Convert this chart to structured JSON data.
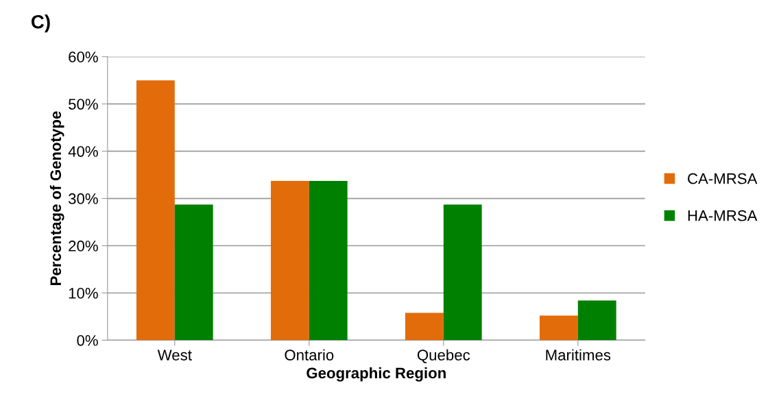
{
  "chart_data": {
    "type": "bar",
    "title": "C)",
    "xlabel": "Geographic Region",
    "ylabel": "Percentage of Genotype",
    "categories": [
      "West",
      "Ontario",
      "Quebec",
      "Maritimes"
    ],
    "series": [
      {
        "name": "CA-MRSA",
        "color": "#e36c0a",
        "values": [
          55.0,
          33.7,
          5.8,
          5.2
        ]
      },
      {
        "name": "HA-MRSA",
        "color": "#008000",
        "values": [
          28.7,
          33.7,
          28.7,
          8.4
        ]
      }
    ],
    "ylim": [
      0,
      60
    ],
    "yticks": [
      {
        "value": 0,
        "label": "0%"
      },
      {
        "value": 10,
        "label": "10%"
      },
      {
        "value": 20,
        "label": "20%"
      },
      {
        "value": 30,
        "label": "30%"
      },
      {
        "value": 40,
        "label": "40%"
      },
      {
        "value": 50,
        "label": "50%"
      },
      {
        "value": 60,
        "label": "60%"
      }
    ],
    "grid": "y",
    "legend": "right"
  }
}
